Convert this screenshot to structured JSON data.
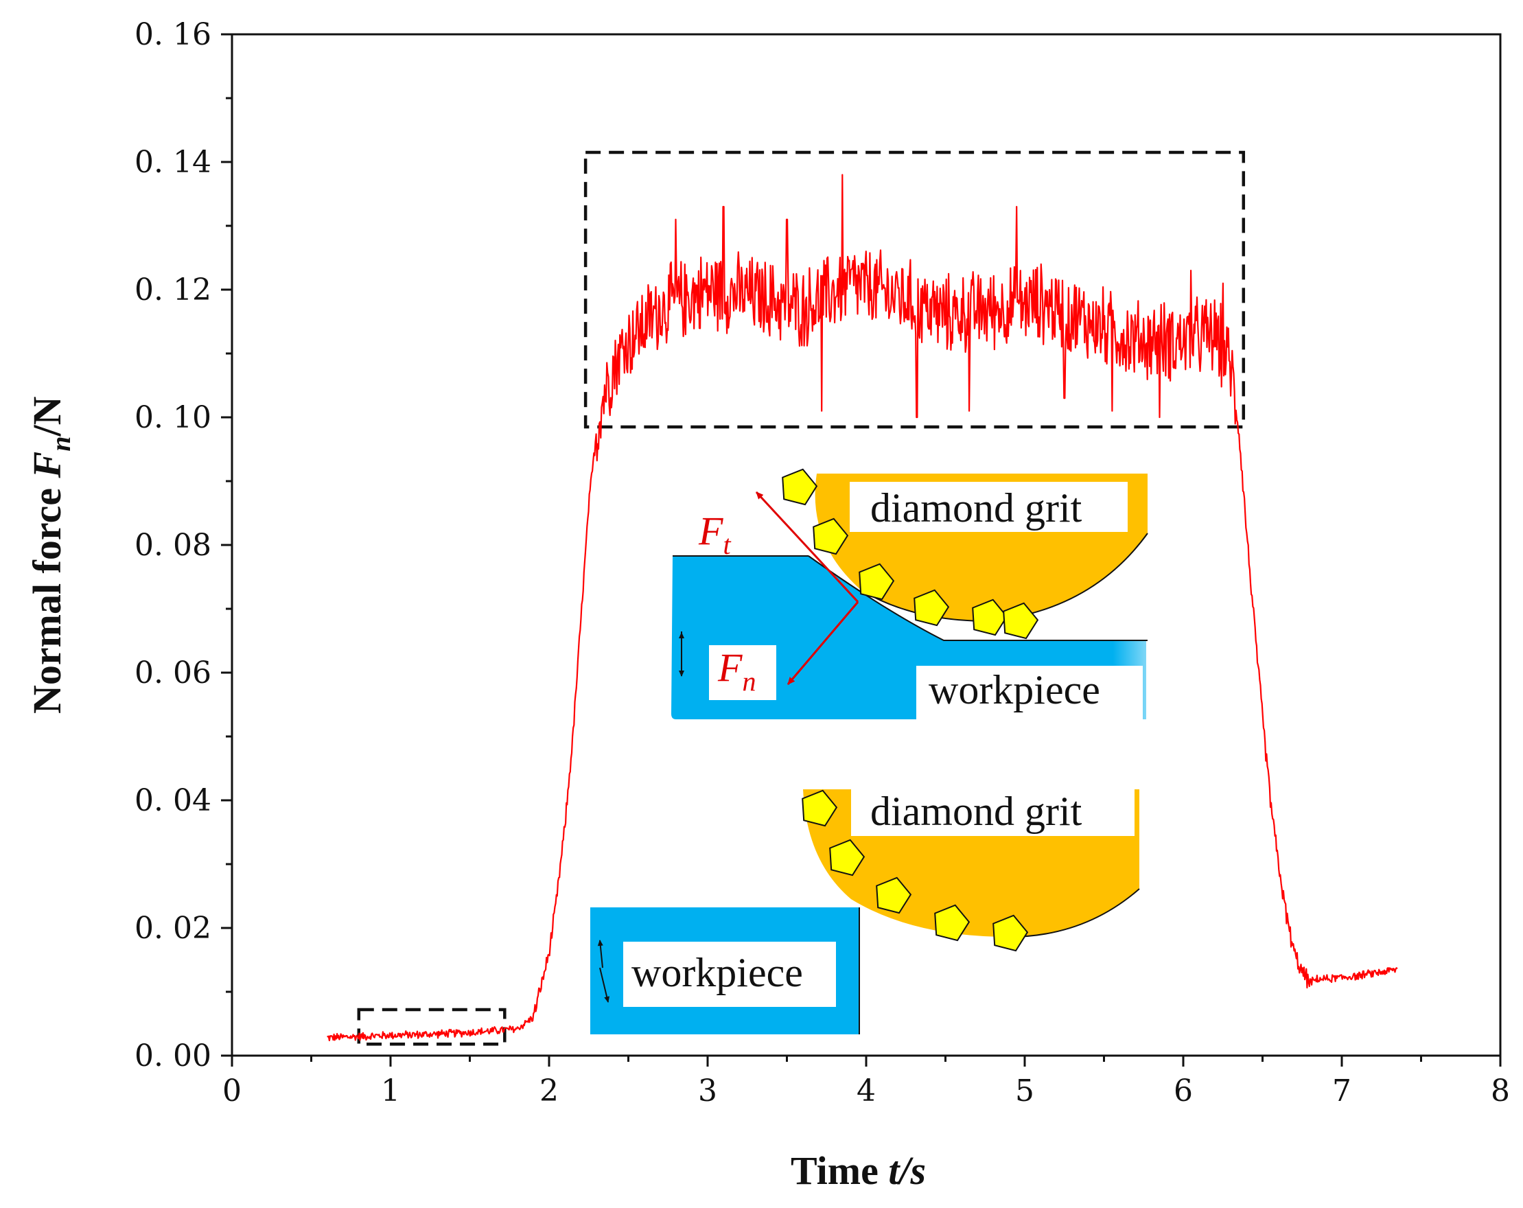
{
  "chart_data": {
    "type": "line",
    "xlabel_prefix": "Time ",
    "xlabel_var": "t/s",
    "ylabel_prefix": "Normal force ",
    "ylabel_var": "F",
    "ylabel_sub": "n",
    "ylabel_suffix": "/N",
    "xlim": [
      0,
      8
    ],
    "ylim": [
      0,
      0.16
    ],
    "x_ticks": [
      "0",
      "1",
      "2",
      "3",
      "4",
      "5",
      "6",
      "7",
      "8"
    ],
    "y_ticks": [
      "0. 00",
      "0. 02",
      "0. 04",
      "0. 06",
      "0. 08",
      "0. 10",
      "0. 12",
      "0. 14",
      "0. 16"
    ],
    "series": [
      {
        "name": "Normal force",
        "color": "#ff0000",
        "profile_x": [
          0.6,
          0.8,
          1.0,
          1.2,
          1.4,
          1.6,
          1.8,
          1.9,
          2.0,
          2.05,
          2.1,
          2.15,
          2.2,
          2.25,
          2.3,
          2.35,
          2.4,
          2.5,
          2.7,
          3.0,
          3.3,
          3.6,
          3.9,
          4.2,
          4.5,
          4.8,
          5.1,
          5.4,
          5.7,
          6.0,
          6.2,
          6.3,
          6.35,
          6.4,
          6.45,
          6.5,
          6.55,
          6.6,
          6.65,
          6.7,
          6.75,
          6.8,
          6.85,
          6.9,
          7.1,
          7.35
        ],
        "profile_y": [
          0.0028,
          0.003,
          0.0032,
          0.0033,
          0.0035,
          0.0038,
          0.0042,
          0.006,
          0.016,
          0.025,
          0.036,
          0.05,
          0.068,
          0.086,
          0.098,
          0.104,
          0.108,
          0.112,
          0.117,
          0.12,
          0.119,
          0.117,
          0.121,
          0.119,
          0.116,
          0.117,
          0.118,
          0.115,
          0.112,
          0.112,
          0.113,
          0.108,
          0.098,
          0.082,
          0.067,
          0.053,
          0.04,
          0.03,
          0.022,
          0.016,
          0.013,
          0.0115,
          0.012,
          0.012,
          0.0125,
          0.0135
        ],
        "spikes_x": [
          2.8,
          3.1,
          3.5,
          3.72,
          3.85,
          4.32,
          4.65,
          4.95,
          5.25,
          5.55,
          5.85,
          6.05,
          6.25
        ],
        "spikes_y": [
          0.131,
          0.133,
          0.131,
          0.101,
          0.138,
          0.1,
          0.101,
          0.133,
          0.103,
          0.101,
          0.1,
          0.123,
          0.121
        ]
      }
    ],
    "highlight_boxes": [
      {
        "x": [
          0.8,
          1.72
        ],
        "y": [
          0.0018,
          0.0072
        ]
      },
      {
        "x": [
          2.23,
          6.38
        ],
        "y": [
          0.0985,
          0.1415
        ]
      }
    ]
  },
  "insets": {
    "top": {
      "grit_label": "diamond grit",
      "workpiece_label": "workpiece",
      "tangential_force": {
        "symbol": "F",
        "sub": "t"
      },
      "normal_force": {
        "symbol": "F",
        "sub": "n"
      }
    },
    "bottom": {
      "grit_label": "diamond grit",
      "workpiece_label": "workpiece"
    }
  },
  "colors": {
    "workpiece": "#00b0f0",
    "grit_wheel": "#ffc000",
    "diamond": "#ffff00",
    "force_arrow": "#e00000",
    "axis": "#111111"
  }
}
